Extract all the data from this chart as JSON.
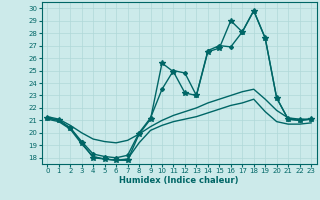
{
  "xlabel": "Humidex (Indice chaleur)",
  "bg_color": "#cceaea",
  "grid_color": "#b0d8d8",
  "line_color": "#006666",
  "xlim": [
    -0.5,
    23.5
  ],
  "ylim": [
    17.5,
    30.5
  ],
  "yticks": [
    18,
    19,
    20,
    21,
    22,
    23,
    24,
    25,
    26,
    27,
    28,
    29,
    30
  ],
  "xticks": [
    0,
    1,
    2,
    3,
    4,
    5,
    6,
    7,
    8,
    9,
    10,
    11,
    12,
    13,
    14,
    15,
    16,
    17,
    18,
    19,
    20,
    21,
    22,
    23
  ],
  "series": [
    {
      "x": [
        0,
        1,
        2,
        3,
        4,
        5,
        6,
        7,
        8,
        9,
        10,
        11,
        12,
        13,
        14,
        15,
        16,
        17,
        18,
        19,
        20,
        21,
        22,
        23
      ],
      "y": [
        21.2,
        21.0,
        20.4,
        19.2,
        18.0,
        17.9,
        17.8,
        17.8,
        19.9,
        21.1,
        25.6,
        24.9,
        23.2,
        23.0,
        26.5,
        26.8,
        29.0,
        28.1,
        29.8,
        27.6,
        22.8,
        21.1,
        21.0,
        21.1
      ],
      "marker": "*",
      "markersize": 4,
      "lw": 1.0
    },
    {
      "x": [
        0,
        1,
        2,
        3,
        4,
        5,
        6,
        7,
        8,
        9,
        10,
        11,
        12,
        13,
        14,
        15,
        16,
        17,
        18,
        19,
        20,
        21,
        22,
        23
      ],
      "y": [
        21.2,
        21.0,
        20.4,
        19.3,
        18.3,
        18.1,
        18.0,
        18.2,
        20.0,
        21.2,
        23.5,
        25.0,
        24.8,
        23.0,
        26.6,
        27.0,
        26.9,
        28.1,
        29.8,
        27.6,
        22.8,
        21.1,
        21.0,
        21.1
      ],
      "marker": "D",
      "markersize": 2,
      "lw": 1.0
    },
    {
      "x": [
        0,
        1,
        2,
        3,
        4,
        5,
        6,
        7,
        8,
        9,
        10,
        11,
        12,
        13,
        14,
        15,
        16,
        17,
        18,
        19,
        20,
        21,
        22,
        23
      ],
      "y": [
        21.3,
        21.1,
        20.6,
        20.0,
        19.5,
        19.3,
        19.2,
        19.4,
        19.9,
        20.5,
        21.0,
        21.4,
        21.7,
        22.0,
        22.4,
        22.7,
        23.0,
        23.3,
        23.5,
        22.7,
        21.8,
        21.2,
        21.1,
        21.1
      ],
      "marker": null,
      "lw": 1.0
    },
    {
      "x": [
        0,
        1,
        2,
        3,
        4,
        5,
        6,
        7,
        8,
        9,
        10,
        11,
        12,
        13,
        14,
        15,
        16,
        17,
        18,
        19,
        20,
        21,
        22,
        23
      ],
      "y": [
        21.1,
        20.9,
        20.3,
        19.1,
        18.1,
        17.9,
        17.8,
        17.9,
        19.2,
        20.2,
        20.6,
        20.9,
        21.1,
        21.3,
        21.6,
        21.9,
        22.2,
        22.4,
        22.7,
        21.7,
        20.9,
        20.7,
        20.7,
        20.8
      ],
      "marker": null,
      "lw": 1.0
    }
  ]
}
